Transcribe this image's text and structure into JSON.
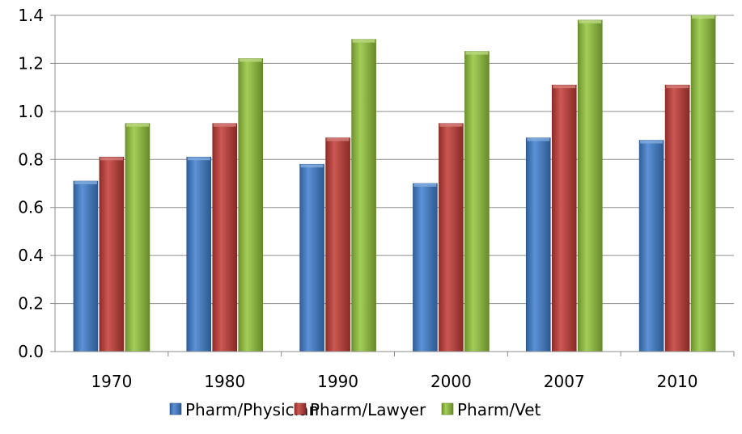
{
  "chart_data": {
    "type": "bar",
    "title": "",
    "xlabel": "",
    "ylabel": "",
    "categories": [
      "1970",
      "1980",
      "1990",
      "2000",
      "2007",
      "2010"
    ],
    "series": [
      {
        "name": "Pharm/Physician",
        "color": "#3f7fcf",
        "values": [
          0.71,
          0.81,
          0.78,
          0.7,
          0.89,
          0.88
        ]
      },
      {
        "name": "Pharm/Lawyer",
        "color": "#c23a35",
        "values": [
          0.81,
          0.95,
          0.89,
          0.95,
          1.11,
          1.11
        ]
      },
      {
        "name": "Pharm/Vet",
        "color": "#93c53a",
        "values": [
          0.95,
          1.22,
          1.3,
          1.25,
          1.38,
          1.4
        ]
      }
    ],
    "ylim": [
      0,
      1.4
    ],
    "yticks": [
      "0.0",
      "0.2",
      "0.4",
      "0.6",
      "0.8",
      "1.0",
      "1.2",
      "1.4"
    ],
    "grid": true,
    "legend_position": "bottom"
  }
}
